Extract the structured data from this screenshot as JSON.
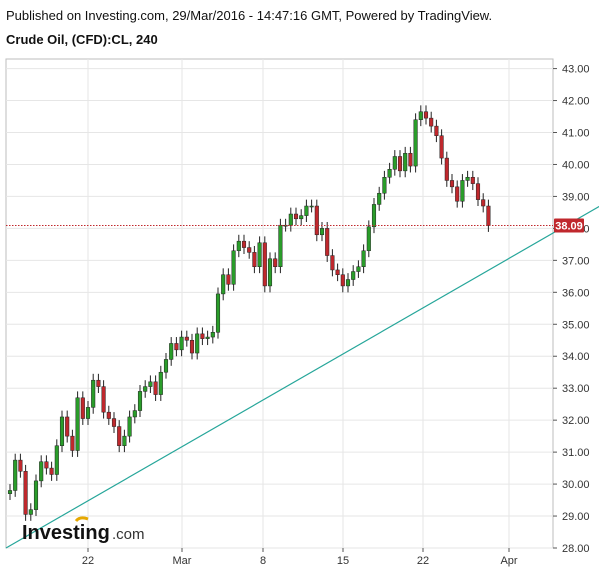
{
  "header": {
    "published": "Published on Investing.com, 29/Mar/2016 - 14:47:16 GMT, Powered by TradingView.",
    "symbol": "Crude Oil, (CFD):CL, 240"
  },
  "logo": {
    "text": "Investing",
    "suffix": ".com"
  },
  "colors": {
    "up": "#2a9d2a",
    "down": "#c0282d",
    "wick": "#222222",
    "trendline": "#26a69a",
    "price_line": "#c0282d",
    "price_label_bg": "#c0282d",
    "grid": "#e6e6e6",
    "axis": "#555555"
  },
  "chart_data": {
    "type": "candlestick",
    "timeframe": "240",
    "x_ticks": [
      "22",
      "Mar",
      "8",
      "15",
      "22",
      "Apr"
    ],
    "y_ticks": [
      "43.00",
      "42.00",
      "41.00",
      "40.00",
      "39.00",
      "38.00",
      "37.00",
      "36.00",
      "35.00",
      "34.00",
      "33.00",
      "32.00",
      "31.00",
      "30.00",
      "29.00",
      "28.00"
    ],
    "ylim": [
      28.0,
      43.3
    ],
    "last_price": "38.09",
    "trendline": {
      "start": [
        0,
        28.0
      ],
      "end": [
        130,
        40.25
      ]
    },
    "close": [
      29.8,
      30.75,
      30.4,
      29.05,
      29.2,
      30.1,
      30.7,
      30.5,
      30.3,
      31.2,
      32.1,
      31.5,
      31.05,
      32.7,
      32.05,
      32.4,
      33.25,
      33.05,
      32.25,
      32.05,
      31.8,
      31.2,
      31.5,
      32.1,
      32.3,
      32.9,
      33.05,
      33.2,
      32.8,
      33.5,
      33.9,
      34.4,
      34.2,
      34.6,
      34.5,
      34.1,
      34.7,
      34.55,
      34.6,
      34.75,
      35.95,
      36.55,
      36.25,
      37.3,
      37.6,
      37.4,
      37.25,
      36.8,
      37.55,
      36.2,
      37.05,
      36.8,
      38.1,
      38.1,
      38.45,
      38.3,
      38.4,
      38.7,
      38.7,
      37.8,
      38.0,
      37.15,
      36.7,
      36.55,
      36.2,
      36.4,
      36.65,
      36.8,
      37.3,
      38.05,
      38.75,
      39.1,
      39.6,
      39.85,
      40.25,
      39.8,
      40.35,
      39.95,
      41.4,
      41.65,
      41.45,
      41.2,
      40.9,
      40.2,
      39.5,
      39.3,
      38.85,
      39.5,
      39.6,
      39.4,
      38.9,
      38.7,
      38.09
    ],
    "open": [
      29.7,
      29.8,
      30.75,
      30.4,
      29.05,
      29.2,
      30.1,
      30.7,
      30.5,
      30.3,
      31.2,
      32.1,
      31.5,
      31.05,
      32.7,
      32.05,
      32.4,
      33.25,
      33.05,
      32.25,
      32.05,
      31.8,
      31.2,
      31.5,
      32.1,
      32.3,
      32.9,
      33.05,
      33.2,
      32.8,
      33.5,
      33.9,
      34.4,
      34.2,
      34.6,
      34.5,
      34.1,
      34.7,
      34.55,
      34.6,
      34.75,
      35.95,
      36.55,
      36.25,
      37.3,
      37.6,
      37.4,
      37.25,
      36.8,
      37.55,
      36.2,
      37.05,
      36.8,
      38.1,
      38.1,
      38.45,
      38.3,
      38.4,
      38.7,
      38.7,
      37.8,
      38.0,
      37.15,
      36.7,
      36.55,
      36.2,
      36.4,
      36.65,
      36.8,
      37.3,
      38.05,
      38.75,
      39.1,
      39.6,
      39.85,
      40.25,
      39.8,
      40.35,
      39.95,
      41.4,
      41.65,
      41.45,
      41.2,
      40.9,
      40.2,
      39.5,
      39.3,
      38.85,
      39.5,
      39.6,
      39.4,
      38.9,
      38.7
    ]
  }
}
